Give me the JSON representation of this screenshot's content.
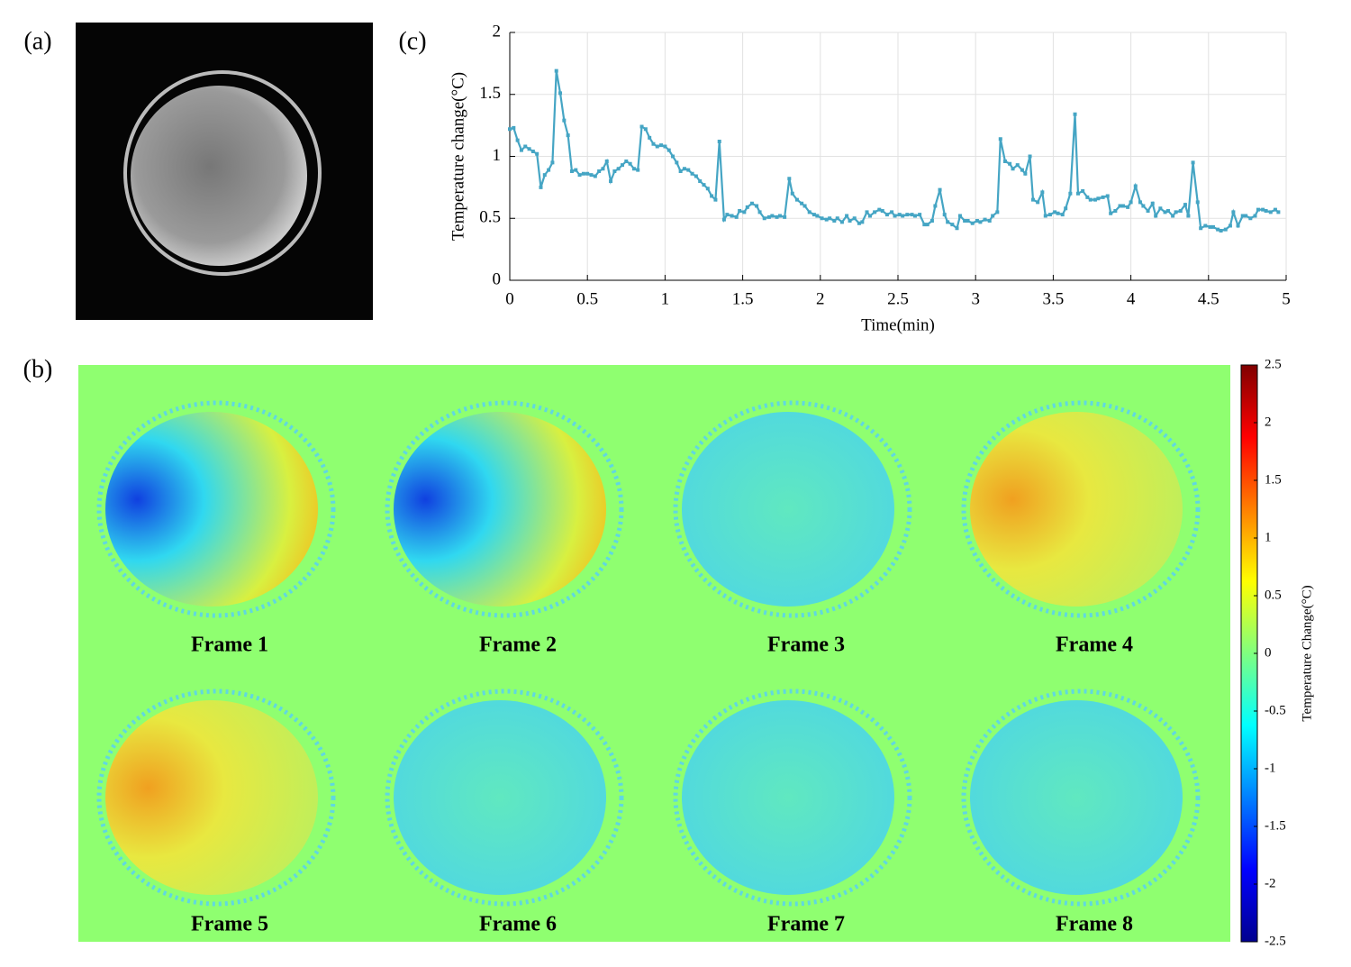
{
  "panel_labels": [
    "(a)",
    "(b)",
    "(c)"
  ],
  "frames": [
    "Frame 1",
    "Frame 2",
    "Frame 3",
    "Frame 4",
    "Frame 5",
    "Frame 6",
    "Frame 7",
    "Frame 8"
  ],
  "chart_data": [
    {
      "type": "line",
      "xlabel": "Time(min)",
      "ylabel": "Temperature change(°C)",
      "color": "#45a5c4",
      "grid": true,
      "xlim": [
        0,
        5
      ],
      "xticks": [
        0,
        0.5,
        1,
        1.5,
        2,
        2.5,
        3,
        3.5,
        4,
        4.5,
        5
      ],
      "ylim": [
        0,
        2
      ],
      "yticks": [
        0,
        0.5,
        1,
        1.5,
        2
      ],
      "x": [
        0,
        0.025,
        0.05,
        0.075,
        0.1,
        0.125,
        0.15,
        0.175,
        0.2,
        0.225,
        0.25,
        0.275,
        0.3,
        0.325,
        0.35,
        0.375,
        0.4,
        0.425,
        0.45,
        0.475,
        0.5,
        0.525,
        0.55,
        0.575,
        0.6,
        0.625,
        0.65,
        0.675,
        0.7,
        0.725,
        0.75,
        0.775,
        0.8,
        0.825,
        0.85,
        0.875,
        0.9,
        0.925,
        0.95,
        0.975,
        1.0,
        1.025,
        1.05,
        1.075,
        1.1,
        1.125,
        1.15,
        1.175,
        1.2,
        1.225,
        1.25,
        1.275,
        1.3,
        1.325,
        1.35,
        1.38,
        1.4,
        1.43,
        1.46,
        1.48,
        1.51,
        1.53,
        1.56,
        1.59,
        1.61,
        1.64,
        1.67,
        1.69,
        1.72,
        1.74,
        1.77,
        1.8,
        1.82,
        1.85,
        1.88,
        1.9,
        1.93,
        1.96,
        1.98,
        2.01,
        2.04,
        2.06,
        2.09,
        2.11,
        2.14,
        2.17,
        2.19,
        2.22,
        2.25,
        2.27,
        2.3,
        2.32,
        2.35,
        2.38,
        2.4,
        2.43,
        2.46,
        2.48,
        2.51,
        2.53,
        2.56,
        2.59,
        2.61,
        2.64,
        2.67,
        2.69,
        2.72,
        2.74,
        2.77,
        2.8,
        2.82,
        2.85,
        2.88,
        2.9,
        2.93,
        2.95,
        2.98,
        3.01,
        3.03,
        3.06,
        3.09,
        3.11,
        3.14,
        3.16,
        3.19,
        3.22,
        3.24,
        3.27,
        3.3,
        3.32,
        3.35,
        3.37,
        3.4,
        3.43,
        3.45,
        3.48,
        3.51,
        3.53,
        3.56,
        3.58,
        3.61,
        3.64,
        3.66,
        3.69,
        3.72,
        3.74,
        3.77,
        3.79,
        3.82,
        3.85,
        3.87,
        3.9,
        3.93,
        3.95,
        3.98,
        4.0,
        4.03,
        4.06,
        4.08,
        4.11,
        4.14,
        4.16,
        4.19,
        4.22,
        4.24,
        4.27,
        4.29,
        4.32,
        4.35,
        4.37,
        4.4,
        4.43,
        4.45,
        4.48,
        4.51,
        4.53,
        4.56,
        4.58,
        4.61,
        4.64,
        4.66,
        4.69,
        4.72,
        4.74,
        4.77,
        4.8,
        4.82,
        4.85,
        4.87,
        4.9,
        4.93,
        4.95
      ],
      "values": [
        1.22,
        1.23,
        1.13,
        1.05,
        1.08,
        1.06,
        1.04,
        1.02,
        0.75,
        0.85,
        0.89,
        0.95,
        1.69,
        1.51,
        1.29,
        1.17,
        0.88,
        0.89,
        0.85,
        0.86,
        0.86,
        0.85,
        0.84,
        0.88,
        0.9,
        0.96,
        0.8,
        0.88,
        0.9,
        0.93,
        0.96,
        0.94,
        0.9,
        0.89,
        1.24,
        1.22,
        1.15,
        1.1,
        1.08,
        1.09,
        1.08,
        1.05,
        1.0,
        0.95,
        0.88,
        0.9,
        0.89,
        0.86,
        0.84,
        0.8,
        0.77,
        0.74,
        0.68,
        0.65,
        1.12,
        0.49,
        0.53,
        0.52,
        0.51,
        0.56,
        0.55,
        0.59,
        0.62,
        0.6,
        0.55,
        0.5,
        0.51,
        0.52,
        0.51,
        0.52,
        0.51,
        0.82,
        0.7,
        0.65,
        0.62,
        0.6,
        0.55,
        0.53,
        0.52,
        0.5,
        0.49,
        0.5,
        0.48,
        0.5,
        0.47,
        0.52,
        0.48,
        0.5,
        0.46,
        0.47,
        0.55,
        0.52,
        0.55,
        0.57,
        0.56,
        0.53,
        0.55,
        0.52,
        0.53,
        0.52,
        0.53,
        0.53,
        0.52,
        0.53,
        0.45,
        0.45,
        0.48,
        0.6,
        0.73,
        0.53,
        0.47,
        0.45,
        0.42,
        0.52,
        0.48,
        0.48,
        0.46,
        0.48,
        0.47,
        0.49,
        0.48,
        0.52,
        0.55,
        1.14,
        0.96,
        0.94,
        0.9,
        0.93,
        0.89,
        0.86,
        1.0,
        0.65,
        0.63,
        0.71,
        0.52,
        0.53,
        0.55,
        0.54,
        0.53,
        0.58,
        0.7,
        1.34,
        0.7,
        0.72,
        0.67,
        0.65,
        0.65,
        0.66,
        0.67,
        0.68,
        0.54,
        0.56,
        0.6,
        0.6,
        0.59,
        0.63,
        0.76,
        0.63,
        0.6,
        0.56,
        0.62,
        0.52,
        0.58,
        0.55,
        0.56,
        0.52,
        0.55,
        0.56,
        0.61,
        0.52,
        0.95,
        0.63,
        0.42,
        0.44,
        0.43,
        0.43,
        0.41,
        0.4,
        0.41,
        0.44,
        0.55,
        0.44,
        0.52,
        0.52,
        0.5,
        0.52,
        0.57,
        0.57,
        0.56,
        0.55,
        0.57,
        0.55
      ]
    },
    {
      "type": "colorbar",
      "label": "Temperature Change(°C)",
      "ylim": [
        -2.5,
        2.5
      ],
      "yticks": [
        -2.5,
        -2,
        -1.5,
        -1,
        -0.5,
        0,
        0.5,
        1,
        1.5,
        2,
        2.5
      ]
    }
  ]
}
